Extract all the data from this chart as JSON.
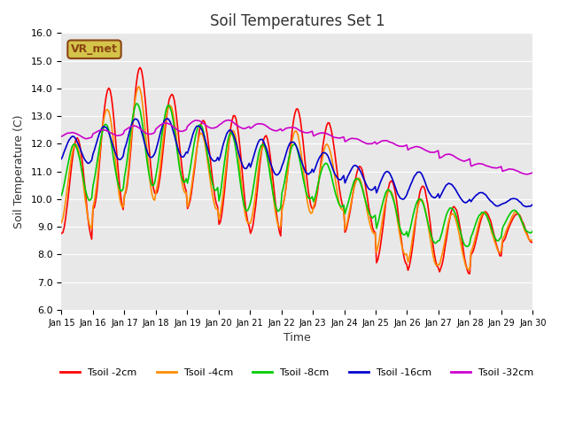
{
  "title": "Soil Temperatures Set 1",
  "xlabel": "Time",
  "ylabel": "Soil Temperature (C)",
  "ylim": [
    6.0,
    16.0
  ],
  "yticks": [
    6.0,
    7.0,
    8.0,
    9.0,
    10.0,
    11.0,
    12.0,
    13.0,
    14.0,
    15.0,
    16.0
  ],
  "bg_color": "#e8e8e8",
  "fig_color": "#ffffff",
  "annotation_text": "VR_met",
  "annotation_bg": "#d4c44a",
  "annotation_border": "#8b4513",
  "series_colors": [
    "#ff0000",
    "#ff8c00",
    "#00cc00",
    "#0000cc",
    "#cc00cc"
  ],
  "series_labels": [
    "Tsoil -2cm",
    "Tsoil -4cm",
    "Tsoil -8cm",
    "Tsoil -16cm",
    "Tsoil -32cm"
  ],
  "xtick_labels": [
    "Jan 15",
    "Jan 16",
    "Jan 17",
    "Jan 18",
    "Jan 19",
    "Jan 20",
    "Jan 21",
    "Jan 22",
    "Jan 23",
    "Jan 24",
    "Jan 25",
    "Jan 26",
    "Jan 27",
    "Jan 28",
    "Jan 29",
    "Jan 30"
  ],
  "n_days": 15,
  "pts_per_day": 24
}
